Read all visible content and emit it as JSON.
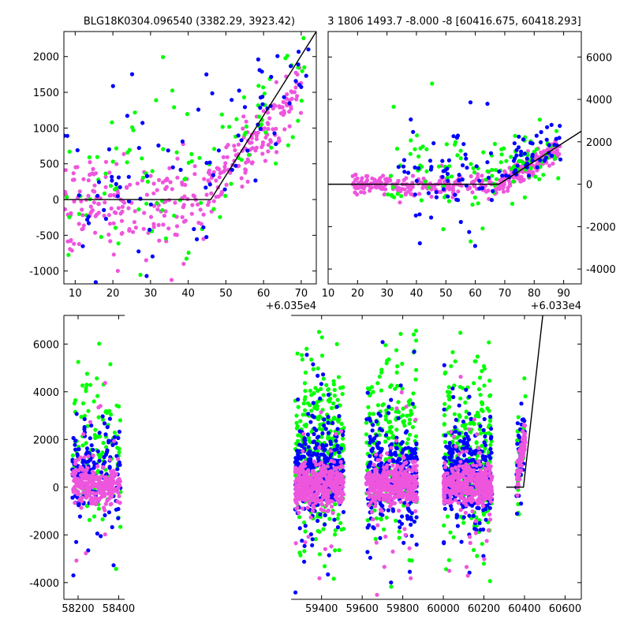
{
  "titles": {
    "top_left": "BLG18K0304.096540 (3382.29, 3923.42)",
    "top_right": "3 1806 1493.7 -8.000 -8 [60416.675, 60418.293]"
  },
  "offsets": {
    "top_left": "+6.035e4",
    "top_right": "+6.033e4"
  },
  "colors": {
    "green": "#00ff00",
    "blue": "#0000ff",
    "magenta": "#ee55dd",
    "model": "#000000"
  },
  "chart_data": [
    {
      "id": "top_left",
      "type": "scatter",
      "title": "BLG18K0304.096540 (3382.29, 3923.42)",
      "x_offset_label": "+6.035e4",
      "xlim": [
        7,
        74
      ],
      "ylim": [
        -1180,
        2350
      ],
      "xticks": [
        10,
        20,
        30,
        40,
        50,
        60,
        70
      ],
      "yticks": [
        -1000,
        -500,
        0,
        500,
        1000,
        1500,
        2000
      ],
      "ytick_side": "left",
      "grid": false,
      "model_line": {
        "x": [
          7,
          46,
          74
        ],
        "y": [
          0,
          0,
          2350
        ]
      },
      "series": [
        {
          "color_key": "magenta",
          "n": 330,
          "baseline": [
            7,
            45,
            -80,
            330
          ],
          "rise": [
            45,
            70,
            80,
            1550,
            220
          ]
        },
        {
          "color_key": "green",
          "n": 110,
          "baseline": [
            7,
            45,
            250,
            750
          ],
          "rise": [
            45,
            72,
            300,
            2000,
            600
          ]
        },
        {
          "color_key": "blue",
          "n": 90,
          "baseline": [
            7,
            45,
            200,
            650
          ],
          "rise": [
            45,
            72,
            250,
            2100,
            500
          ]
        }
      ]
    },
    {
      "id": "top_right",
      "type": "scatter",
      "title": "3 1806 1493.7 -8.000 -8 [60416.675, 60418.293]",
      "x_offset_label": "+6.033e4",
      "xlim": [
        10,
        96
      ],
      "ylim": [
        -4700,
        7200
      ],
      "xticks": [
        10,
        20,
        30,
        40,
        50,
        60,
        70,
        80,
        90
      ],
      "yticks": [
        -4000,
        -2000,
        0,
        2000,
        4000,
        6000
      ],
      "ytick_side": "right",
      "grid": false,
      "model_line": {
        "x": [
          10,
          68,
          96
        ],
        "y": [
          0,
          0,
          2500
        ]
      },
      "series": [
        {
          "color_key": "magenta",
          "n": 380,
          "baseline": [
            18,
            68,
            -40,
            260
          ],
          "rise": [
            68,
            89,
            80,
            1700,
            260
          ]
        },
        {
          "color_key": "green",
          "n": 120,
          "baseline": [
            30,
            68,
            400,
            1300
          ],
          "rise": [
            68,
            89,
            500,
            1800,
            700
          ]
        },
        {
          "color_key": "blue",
          "n": 110,
          "baseline": [
            33,
            68,
            300,
            1200
          ],
          "rise": [
            68,
            89,
            400,
            1900,
            600
          ]
        }
      ]
    },
    {
      "id": "bottom",
      "type": "scatter",
      "title": "",
      "xlim": [
        58130,
        60680
      ],
      "ylim": [
        -4700,
        7200
      ],
      "xticks": [
        58200,
        58400,
        59400,
        59600,
        59800,
        60000,
        60200,
        60400,
        60600
      ],
      "yticks": [
        -4000,
        -2000,
        0,
        2000,
        4000,
        6000
      ],
      "ytick_side": "left",
      "grid": false,
      "axis_break_x": [
        58430,
        59250
      ],
      "model_line": {
        "x": [
          60310,
          60395,
          60490
        ],
        "y": [
          0,
          0,
          7200
        ]
      },
      "seasons": [
        {
          "x": [
            58170,
            58410
          ],
          "n": [
            260,
            170,
            120
          ]
        },
        {
          "x": [
            59270,
            59510
          ],
          "n": [
            420,
            330,
            320
          ]
        },
        {
          "x": [
            59620,
            59870
          ],
          "n": [
            420,
            300,
            230
          ]
        },
        {
          "x": [
            60000,
            60240
          ],
          "n": [
            420,
            300,
            230
          ]
        },
        {
          "x": [
            60360,
            60405
          ],
          "n": [
            70,
            40,
            30
          ]
        }
      ],
      "series_keys": [
        "magenta",
        "blue",
        "green"
      ]
    }
  ]
}
